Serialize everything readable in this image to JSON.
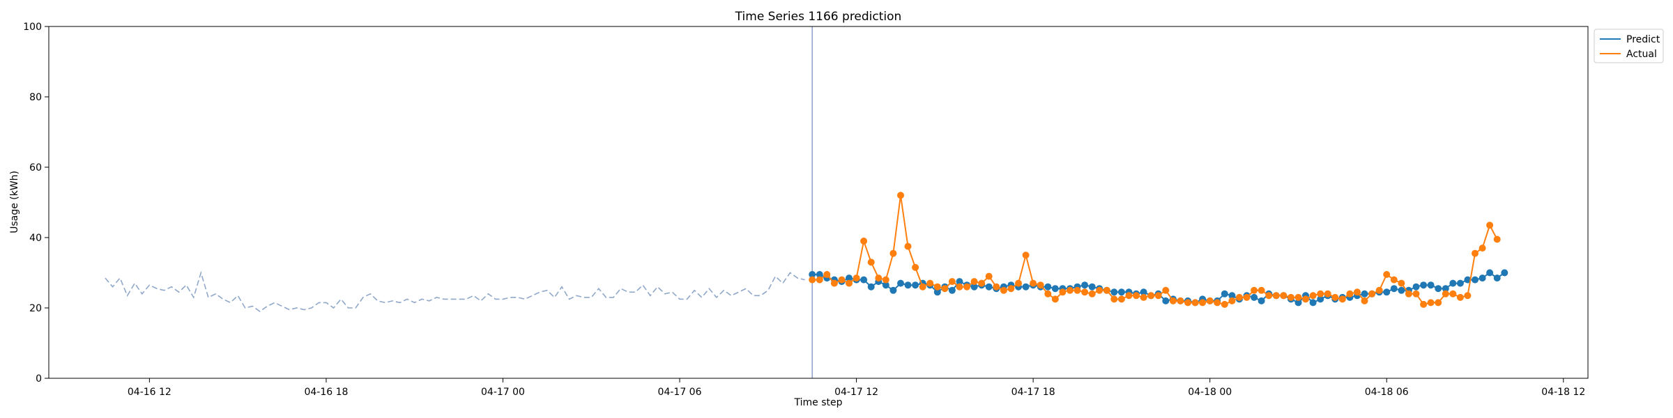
{
  "chart_data": {
    "type": "line",
    "title": "Time Series 1166 prediction",
    "xlabel": "Time step",
    "ylabel": "Usage (kWh)",
    "ylim": [
      0,
      100
    ],
    "yticks": [
      0,
      20,
      40,
      60,
      80,
      100
    ],
    "x_axis": "time",
    "xlim": [
      "04-16 08:35",
      "04-18 12:50"
    ],
    "xticks": [
      {
        "t": "04-16 12:00",
        "label": "04-16 12"
      },
      {
        "t": "04-16 18:00",
        "label": "04-16 18"
      },
      {
        "t": "04-17 00:00",
        "label": "04-17 00"
      },
      {
        "t": "04-17 06:00",
        "label": "04-17 06"
      },
      {
        "t": "04-17 12:00",
        "label": "04-17 12"
      },
      {
        "t": "04-17 18:00",
        "label": "04-17 18"
      },
      {
        "t": "04-18 00:00",
        "label": "04-18 00"
      },
      {
        "t": "04-18 06:00",
        "label": "04-18 06"
      },
      {
        "t": "04-18 12:00",
        "label": "04-18 12"
      }
    ],
    "vline": "04-17 10:30",
    "legend": "top-right",
    "history": {
      "color": "#8fa7c8",
      "style": "dashed",
      "start": "04-16 10:30",
      "step_minutes": 15,
      "values": [
        28.5,
        26.0,
        28.5,
        23.5,
        27.0,
        24.0,
        26.5,
        25.5,
        25.0,
        26.0,
        24.5,
        26.5,
        23.0,
        30.0,
        23.0,
        24.0,
        22.5,
        21.5,
        23.5,
        20.0,
        20.5,
        19.0,
        20.5,
        21.5,
        20.5,
        19.5,
        20.0,
        19.5,
        20.0,
        21.5,
        21.5,
        20.0,
        22.5,
        20.0,
        20.0,
        23.0,
        24.0,
        22.0,
        21.5,
        22.0,
        21.5,
        22.5,
        21.5,
        22.5,
        22.0,
        23.0,
        22.5,
        22.5,
        22.5,
        22.5,
        23.5,
        22.0,
        24.0,
        22.5,
        22.5,
        23.0,
        23.0,
        22.5,
        23.5,
        24.5,
        25.0,
        23.0,
        26.0,
        22.5,
        23.5,
        23.0,
        23.0,
        25.5,
        23.0,
        23.0,
        25.5,
        24.5,
        24.5,
        26.5,
        23.5,
        26.0,
        24.0,
        24.5,
        22.5,
        22.5,
        25.0,
        23.0,
        25.5,
        23.0,
        25.0,
        23.5,
        24.5,
        25.5,
        23.5,
        23.5,
        25.0,
        29.0,
        27.0,
        30.0,
        28.5,
        28.0
      ]
    },
    "series": [
      {
        "name": "Predict",
        "color": "#1f77b4",
        "start": "04-17 10:30",
        "step_minutes": 15,
        "values": [
          29.5,
          29.5,
          28.5,
          28.0,
          27.5,
          28.5,
          28.0,
          28.0,
          26.0,
          27.5,
          26.5,
          25.0,
          27.0,
          26.5,
          26.5,
          27.0,
          26.5,
          24.5,
          26.0,
          25.0,
          27.5,
          26.5,
          26.0,
          26.5,
          26.0,
          25.5,
          26.0,
          26.5,
          26.0,
          26.0,
          26.5,
          26.0,
          26.0,
          25.5,
          25.5,
          25.5,
          26.0,
          26.5,
          26.0,
          25.5,
          25.0,
          24.5,
          24.5,
          24.5,
          24.0,
          24.5,
          23.5,
          24.0,
          22.0,
          22.5,
          22.0,
          22.0,
          21.5,
          22.5,
          22.0,
          22.0,
          24.0,
          23.5,
          22.5,
          23.5,
          23.0,
          22.0,
          24.0,
          23.5,
          23.5,
          22.5,
          21.5,
          23.5,
          21.5,
          22.5,
          23.5,
          22.5,
          23.0,
          23.0,
          23.5,
          24.0,
          24.0,
          24.5,
          24.5,
          25.5,
          25.0,
          25.0,
          26.0,
          26.5,
          26.5,
          25.5,
          25.5,
          27.0,
          27.0,
          28.0,
          28.0,
          28.5,
          30.0,
          28.5,
          30.0
        ]
      },
      {
        "name": "Actual",
        "color": "#ff7f0e",
        "start": "04-17 10:30",
        "step_minutes": 15,
        "values": [
          28.0,
          28.0,
          29.5,
          27.0,
          28.0,
          27.0,
          28.5,
          39.0,
          33.0,
          28.5,
          28.0,
          35.5,
          52.0,
          37.5,
          31.5,
          26.0,
          27.0,
          26.0,
          25.5,
          27.5,
          26.0,
          26.0,
          27.5,
          27.0,
          29.0,
          26.0,
          25.0,
          25.5,
          27.0,
          35.0,
          27.0,
          26.5,
          24.0,
          22.5,
          24.5,
          25.0,
          25.0,
          24.5,
          24.0,
          25.0,
          25.0,
          22.5,
          22.5,
          23.5,
          23.5,
          23.0,
          23.5,
          23.5,
          25.0,
          22.0,
          22.0,
          21.5,
          21.5,
          21.5,
          22.0,
          21.5,
          21.0,
          22.0,
          23.0,
          23.0,
          25.0,
          25.0,
          23.5,
          23.5,
          23.5,
          23.0,
          23.0,
          22.5,
          23.5,
          24.0,
          24.0,
          23.0,
          22.5,
          24.0,
          24.5,
          22.0,
          24.0,
          25.0,
          29.5,
          28.0,
          27.0,
          24.0,
          24.0,
          21.0,
          21.5,
          21.5,
          24.0,
          24.0,
          23.0,
          23.5,
          35.5,
          37.0,
          43.5,
          39.5
        ]
      }
    ]
  }
}
